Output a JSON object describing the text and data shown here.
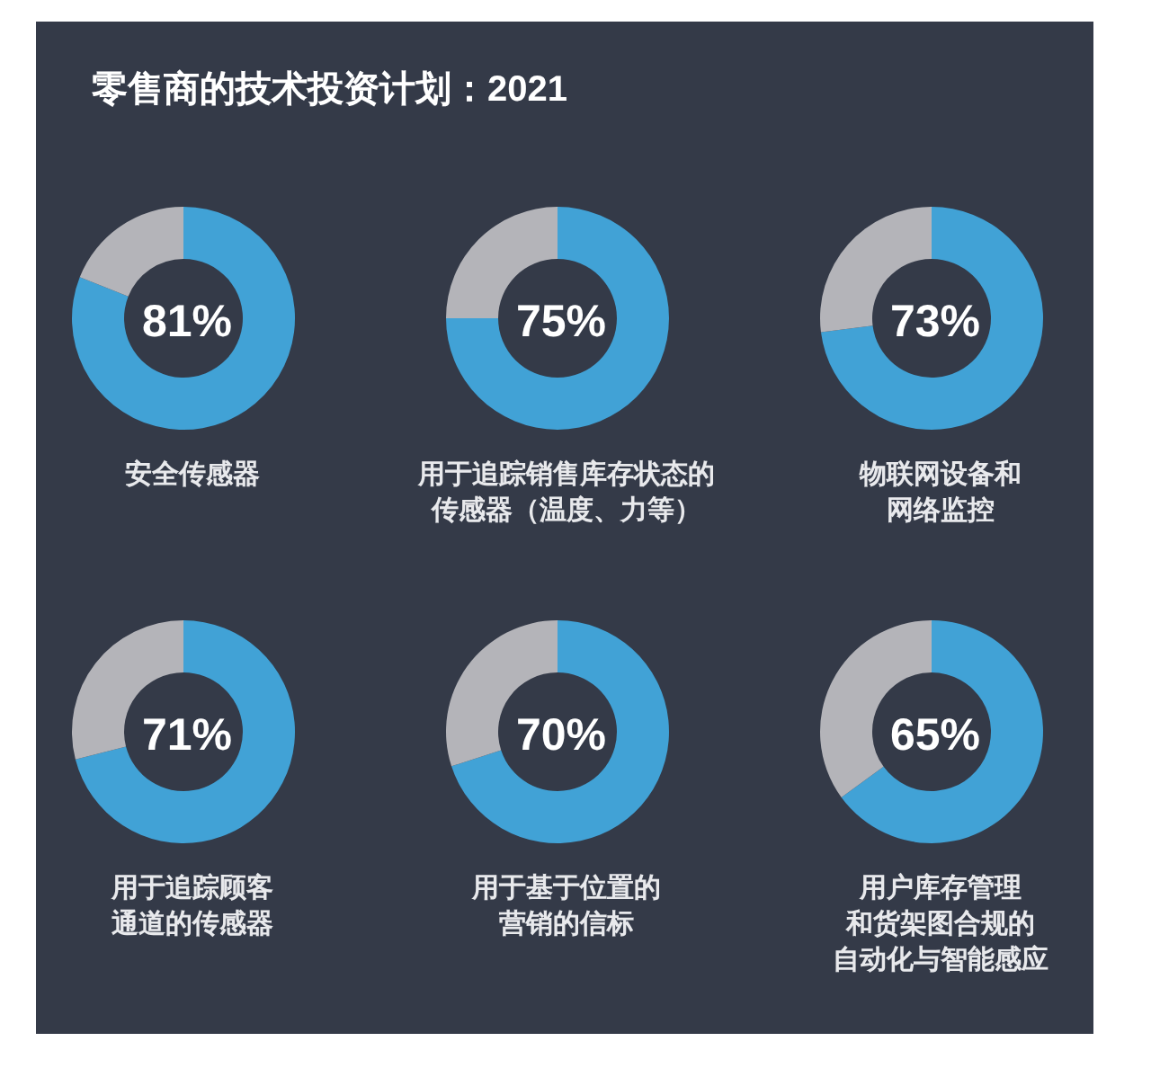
{
  "chart_data": [
    {
      "type": "donut",
      "title": "零售商的技术投资计划：2021",
      "categories": [
        "安全传感器",
        null
      ],
      "values": [
        81,
        19
      ],
      "colors": [
        "#41a2d6",
        "#b4b4b9"
      ],
      "value_labels": [
        "81%",
        null
      ]
    },
    {
      "type": "donut",
      "categories": [
        "用于追踪销售库存状态的传感器（温度、力等）",
        null
      ],
      "values": [
        75,
        25
      ],
      "colors": [
        "#41a2d6",
        "#b4b4b9"
      ],
      "value_labels": [
        "75%",
        null
      ]
    },
    {
      "type": "donut",
      "categories": [
        "物联网设备和网络监控",
        null
      ],
      "values": [
        73,
        27
      ],
      "colors": [
        "#41a2d6",
        "#b4b4b9"
      ],
      "value_labels": [
        "73%",
        null
      ]
    },
    {
      "type": "donut",
      "categories": [
        "用于追踪顾客通道的传感器",
        null
      ],
      "values": [
        71,
        29
      ],
      "colors": [
        "#41a2d6",
        "#b4b4b9"
      ],
      "value_labels": [
        "71%",
        null
      ]
    },
    {
      "type": "donut",
      "categories": [
        "用于基于位置的营销的信标",
        null
      ],
      "values": [
        70,
        30
      ],
      "colors": [
        "#41a2d6",
        "#b4b4b9"
      ],
      "value_labels": [
        "70%",
        null
      ]
    },
    {
      "type": "donut",
      "categories": [
        "用户库存管理和货架图合规的自动化与智能感应",
        null
      ],
      "values": [
        65,
        35
      ],
      "colors": [
        "#41a2d6",
        "#b4b4b9"
      ],
      "value_labels": [
        "65%",
        null
      ]
    }
  ]
}
